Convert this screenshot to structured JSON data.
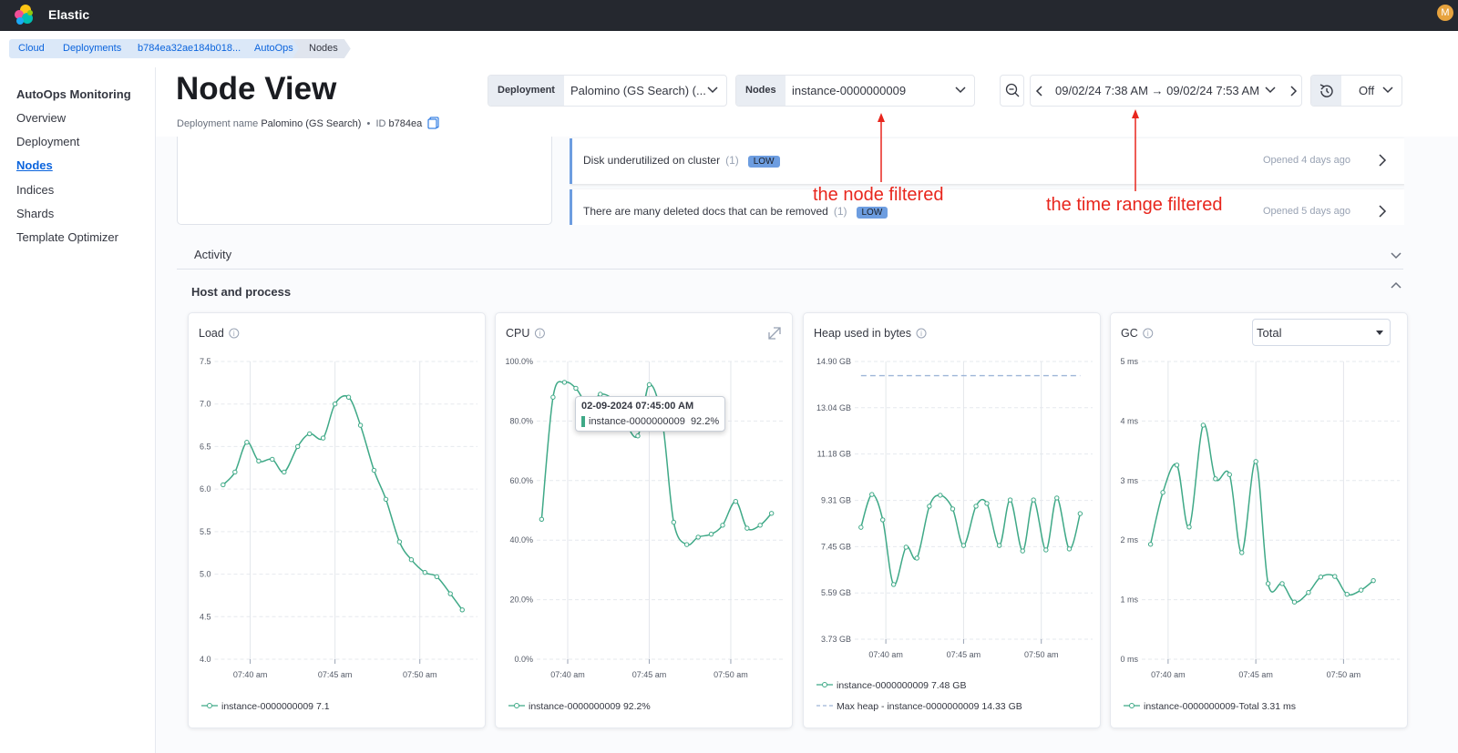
{
  "header": {
    "brand": "Elastic",
    "avatar": "M"
  },
  "breadcrumbs": [
    "Cloud",
    "Deployments",
    "b784ea32ae184b018...",
    "AutoOps",
    "Nodes"
  ],
  "sidebar": {
    "title": "AutoOps Monitoring",
    "items": [
      "Overview",
      "Deployment",
      "Nodes",
      "Indices",
      "Shards",
      "Template Optimizer"
    ]
  },
  "page": {
    "title": "Node View",
    "deployment_name_label": "Deployment name",
    "deployment_name": "Palomino (GS Search)",
    "id_label": "ID",
    "id": "b784ea"
  },
  "filters": {
    "deployment_label": "Deployment",
    "deployment_value": "Palomino (GS Search) (...",
    "nodes_label": "Nodes",
    "nodes_value": "instance-0000000009",
    "time_range": "09/02/24 7:38 AM → 09/02/24 7:53 AM",
    "refresh": "Off"
  },
  "events": [
    {
      "text": "Disk underutilized on cluster",
      "count": "(1)",
      "severity": "LOW",
      "opened": "Opened 4 days ago"
    },
    {
      "text": "There are many deleted docs that can be removed",
      "count": "(1)",
      "severity": "LOW",
      "opened": "Opened 5 days ago"
    }
  ],
  "annotations": [
    "the node filtered",
    "the time range filtered"
  ],
  "sections": [
    "Activity",
    "Host and process"
  ],
  "chart_data": [
    {
      "type": "line",
      "title": "Load",
      "x": [
        38.4,
        39.1,
        39.8,
        40.5,
        41.3,
        42.0,
        42.8,
        43.5,
        44.3,
        45.0,
        45.8,
        46.5,
        47.3,
        48.0,
        48.8,
        49.5,
        50.3,
        51.0,
        51.8,
        52.5
      ],
      "xlim": [
        37.9,
        53.4
      ],
      "xticks": [
        {
          "value": 40,
          "label": "07:40 am"
        },
        {
          "value": 45,
          "label": "07:45 am"
        },
        {
          "value": 50,
          "label": "07:50 am"
        }
      ],
      "ylim": [
        4,
        7.5
      ],
      "yticks": [
        {
          "value": 4,
          "label": "4.0"
        },
        4.5,
        {
          "value": 5,
          "label": "5.0"
        },
        5.5,
        {
          "value": 6,
          "label": "6.0"
        },
        6.5,
        {
          "value": 7,
          "label": "7.0"
        },
        7.5
      ],
      "grid": true,
      "series": [
        {
          "name": "instance-0000000009",
          "color": "#3fa987",
          "legend_value": "7.1",
          "values": [
            6.05,
            6.2,
            6.55,
            6.33,
            6.35,
            6.2,
            6.5,
            6.65,
            6.6,
            7.0,
            7.08,
            6.75,
            6.22,
            5.88,
            5.38,
            5.17,
            5.02,
            4.97,
            4.77,
            4.58
          ]
        }
      ]
    },
    {
      "type": "line",
      "title": "CPU",
      "x": [
        38.4,
        39.1,
        39.8,
        40.5,
        41.3,
        42.0,
        42.8,
        43.5,
        44.3,
        45.0,
        45.8,
        46.5,
        47.3,
        48.0,
        48.8,
        49.5,
        50.3,
        51.0,
        51.8,
        52.5
      ],
      "xlim": [
        38.1,
        53.3
      ],
      "xticks": [
        {
          "value": 40,
          "label": "07:40 am"
        },
        {
          "value": 45,
          "label": "07:45 am"
        },
        {
          "value": 50,
          "label": "07:50 am"
        }
      ],
      "ylim": [
        0,
        100
      ],
      "yticks": [
        {
          "value": 0,
          "label": "0.0%"
        },
        {
          "value": 20,
          "label": "20.0%"
        },
        {
          "value": 40,
          "label": "40.0%"
        },
        {
          "value": 60,
          "label": "60.0%"
        },
        {
          "value": 80,
          "label": "80.0%"
        },
        {
          "value": 100,
          "label": "100.0%"
        }
      ],
      "grid": true,
      "tooltip": {
        "title": "02-09-2024 07:45:00 AM",
        "series": "instance-0000000009",
        "value": "92.2%"
      },
      "series": [
        {
          "name": "instance-0000000009",
          "color": "#3fa987",
          "legend_value": "92.2%",
          "values": [
            47,
            88,
            93,
            91,
            85,
            89,
            87,
            80,
            75,
            92.2,
            80,
            46,
            38.5,
            41,
            42,
            45,
            53,
            44,
            45,
            49
          ]
        }
      ]
    },
    {
      "type": "line",
      "title": "Heap used in bytes",
      "x": [
        38.4,
        39.1,
        39.8,
        40.5,
        41.3,
        42.0,
        42.8,
        43.5,
        44.3,
        45.0,
        45.8,
        46.5,
        47.3,
        48.0,
        48.8,
        49.5,
        50.3,
        51.0,
        51.8,
        52.5
      ],
      "xlim": [
        38.0,
        53.3
      ],
      "xticks": [
        {
          "value": 40,
          "label": "07:40 am"
        },
        {
          "value": 45,
          "label": "07:45 am"
        },
        {
          "value": 50,
          "label": "07:50 am"
        }
      ],
      "ylim": [
        3.73,
        14.9
      ],
      "yticks": [
        {
          "value": 3.73,
          "label": "3.73 GB"
        },
        {
          "value": 5.59,
          "label": "5.59 GB"
        },
        {
          "value": 7.45,
          "label": "7.45 GB"
        },
        {
          "value": 9.31,
          "label": "9.31 GB"
        },
        {
          "value": 11.18,
          "label": "11.18 GB"
        },
        {
          "value": 13.04,
          "label": "13.04 GB"
        },
        {
          "value": 14.9,
          "label": "14.90 GB"
        }
      ],
      "grid": true,
      "series": [
        {
          "name": "instance-0000000009",
          "color": "#3fa987",
          "legend_value": "7.48 GB",
          "values": [
            8.23,
            9.55,
            8.53,
            5.93,
            7.43,
            6.99,
            9.08,
            9.52,
            8.97,
            7.5,
            9.08,
            9.19,
            7.5,
            9.33,
            7.28,
            9.33,
            7.32,
            9.41,
            7.36,
            8.78
          ]
        },
        {
          "name": "Max heap - instance-0000000009",
          "color": "#9db5d8",
          "dashed": true,
          "legend_value": "14.33 GB",
          "values": [
            14.33,
            14.33,
            14.33,
            14.33,
            14.33,
            14.33,
            14.33,
            14.33,
            14.33,
            14.33,
            14.33,
            14.33,
            14.33,
            14.33,
            14.33,
            14.33,
            14.33,
            14.33,
            14.33,
            14.33
          ]
        }
      ]
    },
    {
      "type": "line",
      "title": "GC",
      "selector": "Total",
      "x": [
        39.0,
        39.7,
        40.5,
        41.2,
        42.0,
        42.7,
        43.5,
        44.2,
        45.0,
        45.7,
        46.5,
        47.2,
        48.0,
        48.7,
        49.5,
        50.2,
        51.0,
        51.7
      ],
      "xlim": [
        38.5,
        53.2
      ],
      "xticks": [
        {
          "value": 40,
          "label": "07:40 am"
        },
        {
          "value": 45,
          "label": "07:45 am"
        },
        {
          "value": 50,
          "label": "07:50 am"
        }
      ],
      "ylim": [
        0,
        5
      ],
      "yticks": [
        {
          "value": 0,
          "label": "0 ms"
        },
        {
          "value": 1,
          "label": "1 ms"
        },
        {
          "value": 2,
          "label": "2 ms"
        },
        {
          "value": 3,
          "label": "3 ms"
        },
        {
          "value": 4,
          "label": "4 ms"
        },
        {
          "value": 5,
          "label": "5 ms"
        }
      ],
      "grid": true,
      "series": [
        {
          "name": "instance-0000000009-Total",
          "color": "#3fa987",
          "legend_value": "3.31 ms",
          "values": [
            1.93,
            2.8,
            3.26,
            2.22,
            3.93,
            3.03,
            3.1,
            1.79,
            3.32,
            1.27,
            1.27,
            0.96,
            1.12,
            1.38,
            1.39,
            1.09,
            1.16,
            1.32
          ]
        }
      ]
    }
  ]
}
